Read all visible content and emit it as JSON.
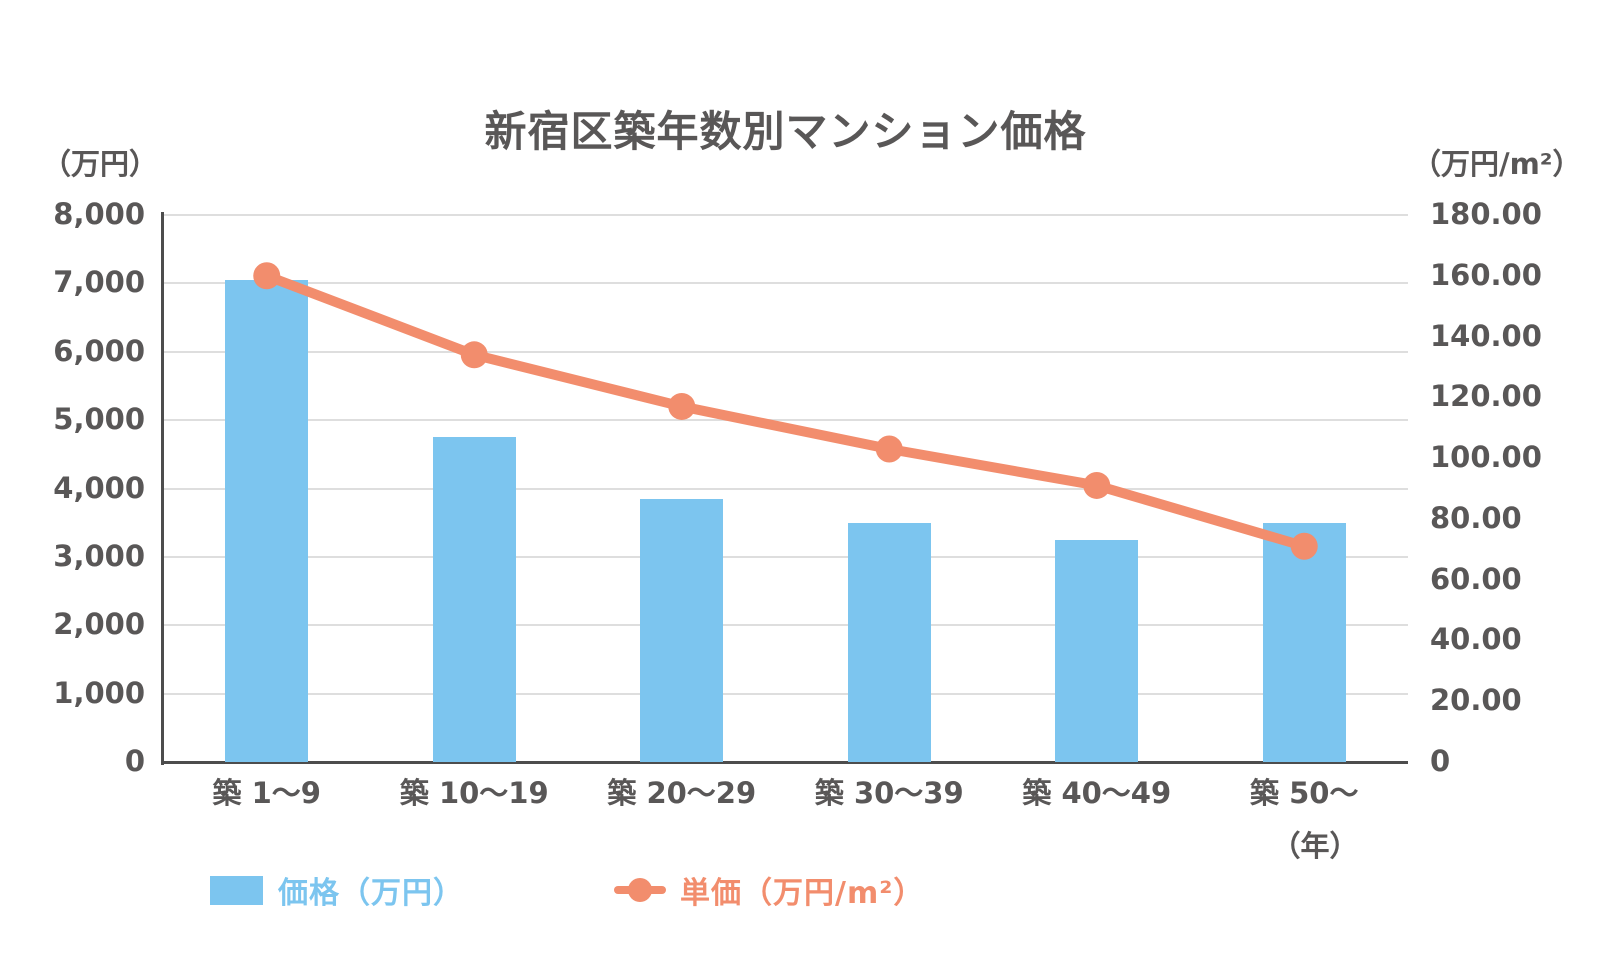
{
  "chart_data": {
    "type": "combo-bar-line",
    "title": "新宿区築年数別マンション価格",
    "categories": [
      "築 1〜9",
      "築 10〜19",
      "築 20〜29",
      "築 30〜39",
      "築 40〜49",
      "築 50〜"
    ],
    "x_axis_note": "（年）",
    "grid": true,
    "legend_position": "bottom-left",
    "left_axis": {
      "unit": "（万円）",
      "min": 0,
      "max": 8000,
      "step": 1000,
      "ticks": [
        {
          "label": "8,000",
          "value": 8000
        },
        {
          "label": "7,000",
          "value": 7000
        },
        {
          "label": "6,000",
          "value": 6000
        },
        {
          "label": "5,000",
          "value": 5000
        },
        {
          "label": "4,000",
          "value": 4000
        },
        {
          "label": "3,000",
          "value": 3000
        },
        {
          "label": "2,000",
          "value": 2000
        },
        {
          "label": "1,000",
          "value": 1000
        },
        {
          "label": "0",
          "value": 0
        }
      ]
    },
    "right_axis": {
      "unit": "（万円/m²）",
      "min": 0,
      "max": 180,
      "step": 20,
      "ticks": [
        {
          "label": "180.00",
          "value": 180
        },
        {
          "label": "160.00",
          "value": 160
        },
        {
          "label": "140.00",
          "value": 140
        },
        {
          "label": "120.00",
          "value": 120
        },
        {
          "label": "100.00",
          "value": 100
        },
        {
          "label": "80.00",
          "value": 80
        },
        {
          "label": "60.00",
          "value": 60
        },
        {
          "label": "40.00",
          "value": 40
        },
        {
          "label": "20.00",
          "value": 20
        },
        {
          "label": "0",
          "value": 0
        }
      ]
    },
    "series": [
      {
        "name": "価格（万円）",
        "type": "bar",
        "axis": "left",
        "color": "#7cc5ef",
        "values": [
          7050,
          4750,
          3850,
          3500,
          3250,
          3500
        ]
      },
      {
        "name": "単価（万円/m²）",
        "type": "line",
        "axis": "right",
        "color": "#f28d6d",
        "values": [
          160,
          134,
          117,
          103,
          91,
          71
        ]
      }
    ],
    "colors": {
      "bar_blue": "#7cc5ef",
      "line_orange": "#f28d6d",
      "text_gray": "#595757",
      "gridline": "#dedede",
      "axis_line": "#4d4d4d",
      "background": "#ffffff"
    }
  }
}
